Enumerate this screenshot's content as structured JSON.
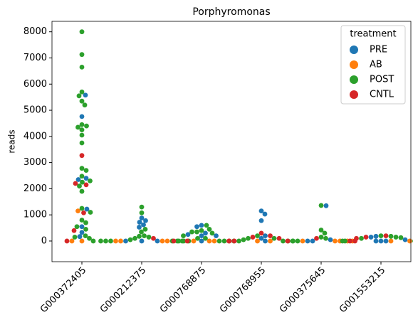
{
  "chart_data": {
    "type": "swarm",
    "title": "Porphyromonas",
    "y_label": "reads",
    "categories": [
      "G000372405",
      "G000212375",
      "G000768875",
      "G000768955",
      "G000375645",
      "G001553215"
    ],
    "ylim": [
      -790,
      8400
    ],
    "yticks": [
      0,
      1000,
      2000,
      3000,
      4000,
      5000,
      6000,
      7000,
      8000
    ],
    "legend_title": "treatment",
    "legend": "upper right",
    "series": [
      {
        "name": "PRE",
        "color": "#1f77b4",
        "x": [
          "G000372405",
          "G000372405",
          "G000372405",
          "G000372405",
          "G000372405",
          "G000372405",
          "G000372405",
          "G000372405",
          "G000212375",
          "G000212375",
          "G000212375",
          "G000212375",
          "G000212375",
          "G000212375",
          "G000212375",
          "G000212375",
          "G000768875",
          "G000768875",
          "G000768875",
          "G000768875",
          "G000768875",
          "G000768875",
          "G000768875",
          "G000768955",
          "G000768955",
          "G000768955",
          "G000768955",
          "G000768955",
          "G000768955",
          "G000375645",
          "G000375645",
          "G000375645",
          "G000375645",
          "G001553215",
          "G001553215",
          "G001553215",
          "G001553215",
          "G001553215",
          "G001553215"
        ],
        "values": [
          5580,
          4760,
          2400,
          2350,
          1220,
          550,
          330,
          170,
          880,
          780,
          720,
          620,
          530,
          0,
          0,
          0,
          600,
          550,
          300,
          250,
          200,
          200,
          0,
          1150,
          1030,
          780,
          200,
          100,
          0,
          1350,
          50,
          0,
          0,
          180,
          150,
          50,
          0,
          0,
          0
        ]
      },
      {
        "name": "AB",
        "color": "#ff7f0e",
        "x": [
          "G000372405",
          "G000372405",
          "G000372405",
          "G000212375",
          "G000212375",
          "G000212375",
          "G000212375",
          "G000768875",
          "G000768875",
          "G000768875",
          "G000768955",
          "G000768955",
          "G000375645",
          "G000375645",
          "G000375645",
          "G001553215",
          "G001553215",
          "G001553215",
          "G001553215"
        ],
        "values": [
          1150,
          0,
          0,
          0,
          0,
          0,
          0,
          0,
          0,
          0,
          0,
          0,
          0,
          0,
          0,
          0,
          0,
          0,
          0
        ]
      },
      {
        "name": "POST",
        "color": "#2ca02c",
        "x": [
          "G000372405",
          "G000372405",
          "G000372405",
          "G000372405",
          "G000372405",
          "G000372405",
          "G000372405",
          "G000372405",
          "G000372405",
          "G000372405",
          "G000372405",
          "G000372405",
          "G000372405",
          "G000372405",
          "G000372405",
          "G000372405",
          "G000372405",
          "G000372405",
          "G000372405",
          "G000372405",
          "G000372405",
          "G000372405",
          "G000372405",
          "G000372405",
          "G000372405",
          "G000372405",
          "G000372405",
          "G000372405",
          "G000372405",
          "G000372405",
          "G000212375",
          "G000212375",
          "G000212375",
          "G000212375",
          "G000212375",
          "G000212375",
          "G000212375",
          "G000212375",
          "G000212375",
          "G000212375",
          "G000212375",
          "G000212375",
          "G000212375",
          "G000212375",
          "G000212375",
          "G000768875",
          "G000768875",
          "G000768875",
          "G000768875",
          "G000768875",
          "G000768875",
          "G000768875",
          "G000768875",
          "G000768875",
          "G000768875",
          "G000768875",
          "G000768875",
          "G000768875",
          "G000768875",
          "G000768955",
          "G000768955",
          "G000768955",
          "G000768955",
          "G000768955",
          "G000768955",
          "G000768955",
          "G000768955",
          "G000768955",
          "G000375645",
          "G000375645",
          "G000375645",
          "G000375645",
          "G000375645",
          "G000375645",
          "G000375645",
          "G000375645",
          "G001553215",
          "G001553215",
          "G001553215",
          "G001553215",
          "G001553215",
          "G001553215",
          "G001553215"
        ],
        "values": [
          8000,
          7130,
          6650,
          5700,
          5550,
          5350,
          5200,
          4450,
          4400,
          4350,
          4250,
          4050,
          3750,
          2780,
          2700,
          2480,
          2300,
          2250,
          2100,
          1900,
          1250,
          1100,
          800,
          700,
          550,
          450,
          200,
          150,
          100,
          0,
          1300,
          1080,
          450,
          350,
          200,
          180,
          150,
          100,
          50,
          0,
          0,
          0,
          0,
          0,
          0,
          600,
          450,
          400,
          350,
          350,
          300,
          200,
          100,
          100,
          0,
          0,
          0,
          0,
          0,
          200,
          100,
          100,
          50,
          0,
          0,
          0,
          0,
          0,
          1360,
          420,
          300,
          150,
          100,
          0,
          0,
          0,
          200,
          180,
          150,
          130,
          100,
          0,
          0
        ]
      },
      {
        "name": "CNTL",
        "color": "#d62728",
        "x": [
          "G000372405",
          "G000372405",
          "G000372405",
          "G000372405",
          "G000372405",
          "G000372405",
          "G000212375",
          "G000212375",
          "G000768875",
          "G000768875",
          "G000768875",
          "G000768955",
          "G000768955",
          "G000768955",
          "G000768955",
          "G000768955",
          "G000375645",
          "G000375645",
          "G000375645",
          "G000375645",
          "G001553215",
          "G001553215",
          "G001553215",
          "G001553215"
        ],
        "values": [
          3270,
          2200,
          2150,
          1080,
          400,
          0,
          100,
          0,
          0,
          0,
          0,
          300,
          200,
          150,
          100,
          0,
          100,
          0,
          0,
          0,
          200,
          150,
          100,
          0
        ]
      }
    ]
  }
}
